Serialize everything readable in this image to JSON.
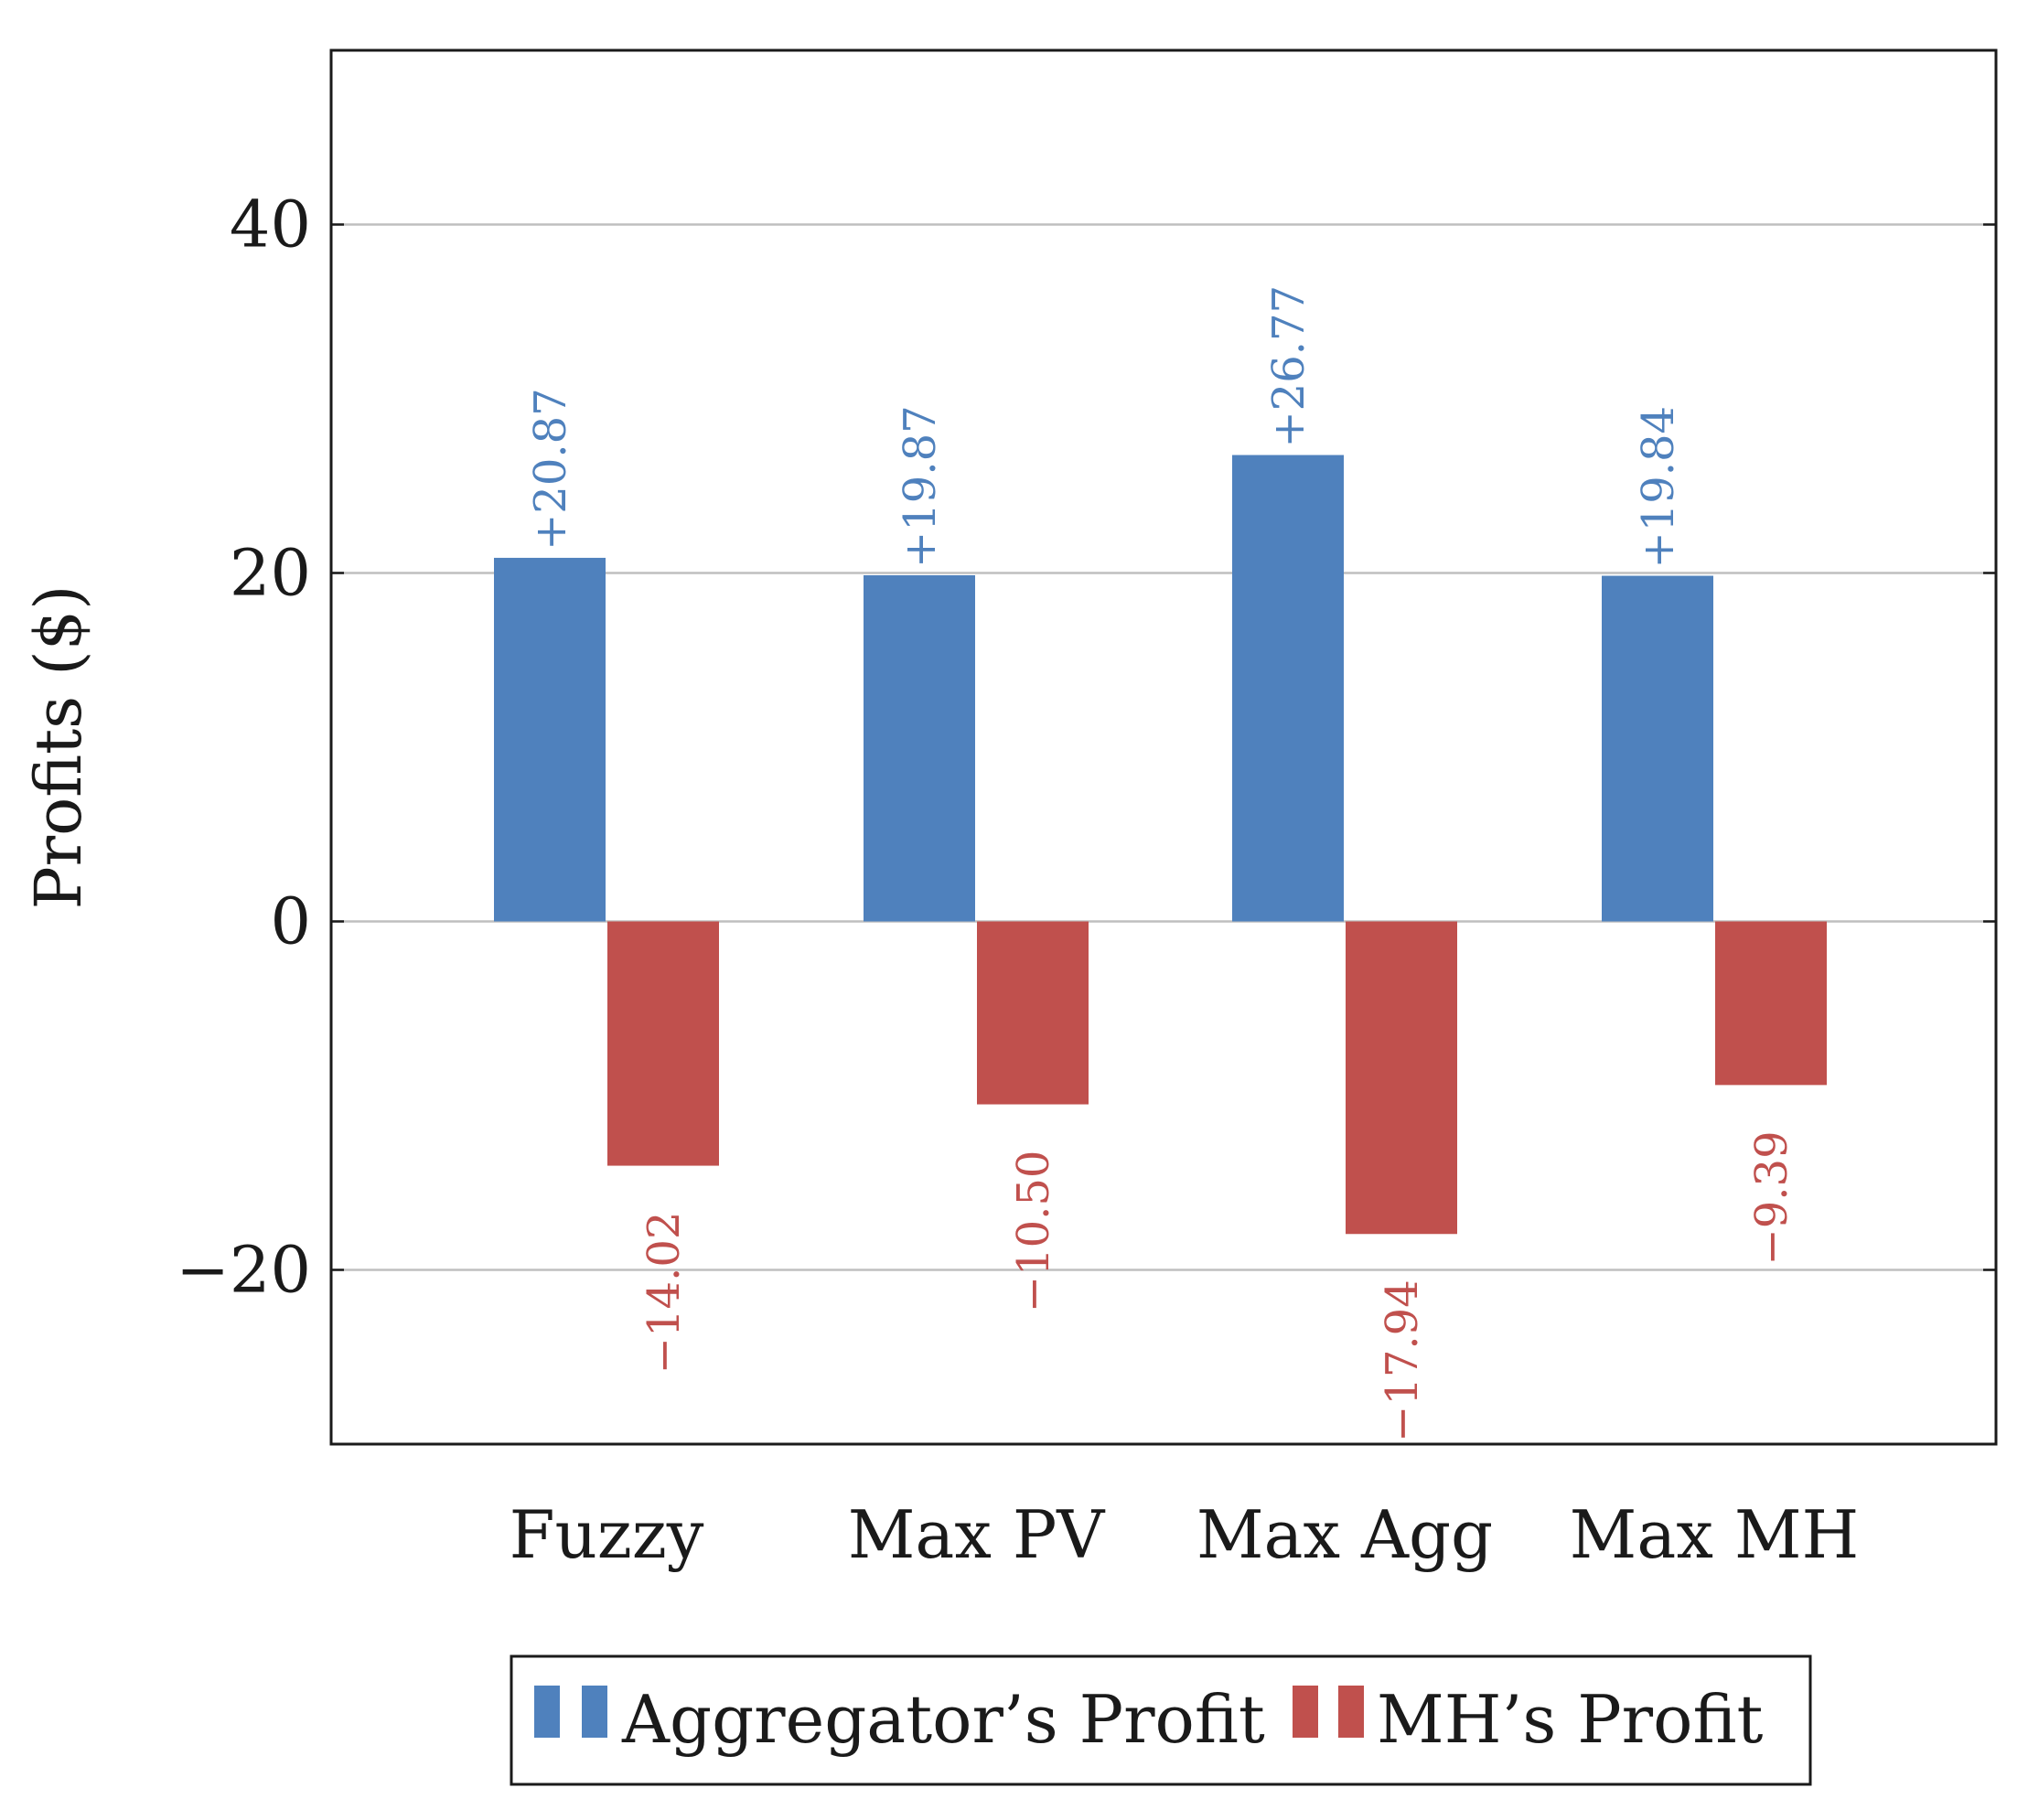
{
  "chart_data": {
    "type": "bar",
    "title": "",
    "xlabel": "",
    "ylabel": "Profits ($)",
    "ylim": [
      -30,
      50
    ],
    "yticks": [
      -20,
      0,
      20,
      40
    ],
    "ytick_labels": [
      "−20",
      "0",
      "20",
      "40"
    ],
    "grid": true,
    "categories": [
      "Fuzzy",
      "Max PV",
      "Max Agg",
      "Max MH"
    ],
    "series": [
      {
        "name": "Aggregator’s Profit",
        "color": "#4f81bd",
        "values": [
          20.87,
          19.87,
          26.77,
          19.84
        ],
        "labels": [
          "+20.87",
          "+19.87",
          "+26.77",
          "+19.84"
        ]
      },
      {
        "name": "MH’s Profit",
        "color": "#c0504d",
        "values": [
          -14.02,
          -10.5,
          -17.94,
          -9.39
        ],
        "labels": [
          "−14.02",
          "−10.50",
          "−17.94",
          "−9.39"
        ]
      }
    ],
    "legend_position": "bottom-center"
  }
}
